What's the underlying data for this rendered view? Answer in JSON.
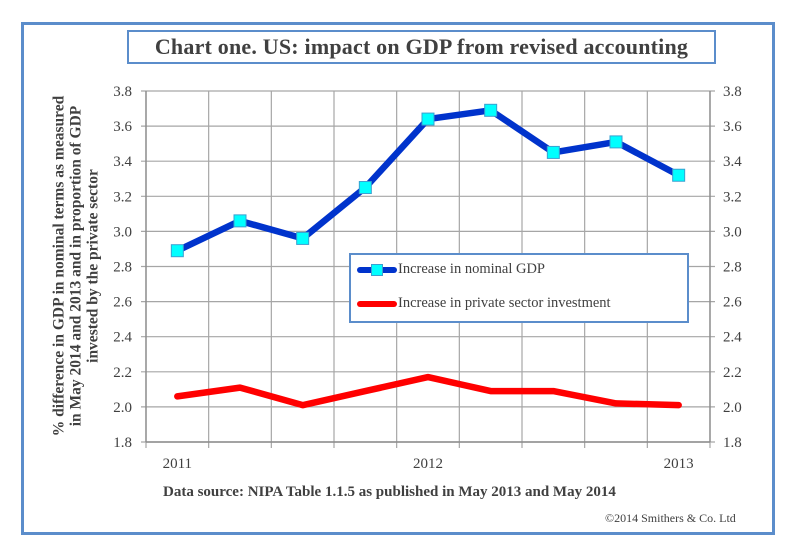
{
  "chart_data": {
    "type": "line",
    "title": "Chart one. US: impact on GDP from revised accounting",
    "xlabel": "",
    "ylabel": "% difference in GDP in nominal terms as measured in May 2014 and 2013 and in proportion of GDP invested by the private sector",
    "ylabel_lines": [
      "% difference in GDP in nominal terms as measured",
      "in May 2014 and 2013 and in proportion of GDP",
      "invested by the private sector"
    ],
    "x": [
      "2011 Q1",
      "2011 Q2",
      "2011 Q3",
      "2011 Q4",
      "2012 Q1",
      "2012 Q2",
      "2012 Q3",
      "2012 Q4",
      "2013 Q1"
    ],
    "x_tick_labels": [
      {
        "index": 0,
        "label": "2011"
      },
      {
        "index": 4,
        "label": "2012"
      },
      {
        "index": 8,
        "label": "2013"
      }
    ],
    "ylim": [
      1.8,
      3.8
    ],
    "y_ticks": [
      "1.8",
      "2.0",
      "2.2",
      "2.4",
      "2.6",
      "2.8",
      "3.0",
      "3.2",
      "3.4",
      "3.6",
      "3.8"
    ],
    "y_tick_values": [
      1.8,
      2.0,
      2.2,
      2.4,
      2.6,
      2.8,
      3.0,
      3.2,
      3.4,
      3.6,
      3.8
    ],
    "secondary_y_axis_mirrors_primary": true,
    "grid": true,
    "legend_position": "center-right",
    "series": [
      {
        "name": "Increase in nominal GDP",
        "color": "#0033cc",
        "marker": "square",
        "marker_color": "#00ffff",
        "values": [
          2.89,
          3.06,
          2.96,
          3.25,
          3.64,
          3.69,
          3.45,
          3.51,
          3.32
        ]
      },
      {
        "name": "Increase in private sector investment",
        "color": "#ff0000",
        "marker": "none",
        "values": [
          2.06,
          2.11,
          2.01,
          2.09,
          2.17,
          2.09,
          2.09,
          2.02,
          2.01
        ]
      }
    ],
    "source": "Data source: NIPA Table 1.1.5 as published in May 2013 and May 2014",
    "copyright": "©2014 Smithers & Co. Ltd"
  }
}
